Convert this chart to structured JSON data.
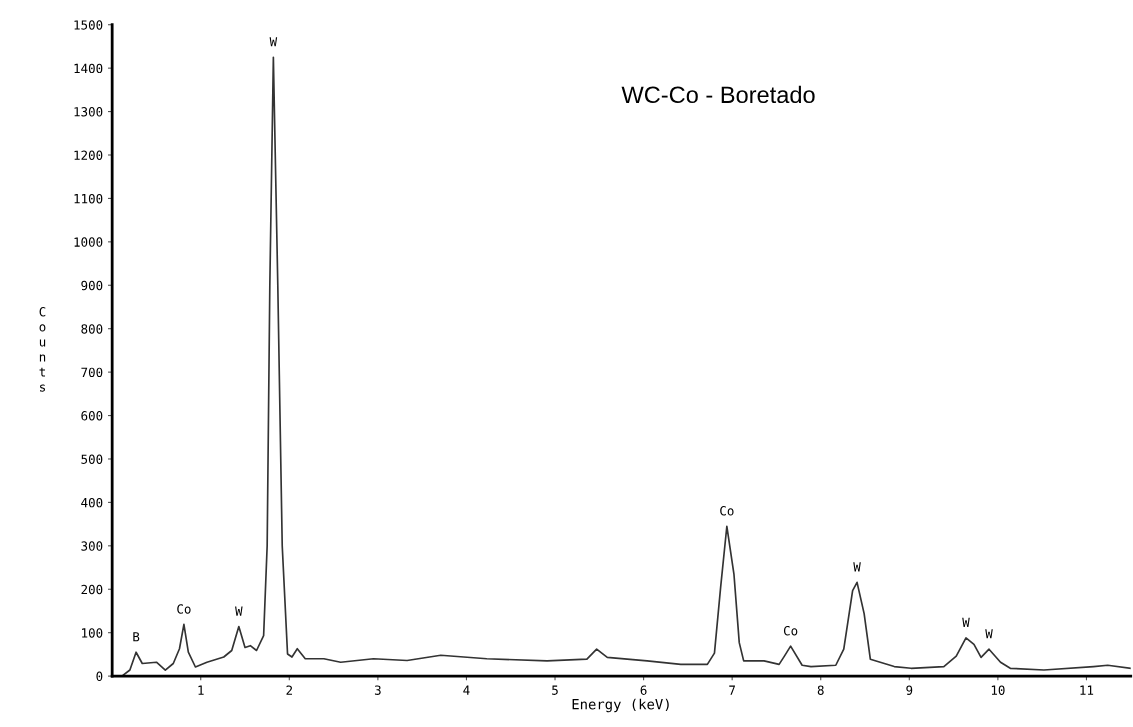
{
  "chart_data": {
    "type": "line",
    "title": "WC-Co - Boretado",
    "xlabel": "Energy (keV)",
    "ylabel": "Counts",
    "xlim": [
      0,
      11.5
    ],
    "xticks": [
      1,
      2,
      3,
      4,
      5,
      6,
      7,
      8,
      9,
      10,
      11
    ],
    "ylim": [
      0,
      1500
    ],
    "yticks": [
      0,
      100,
      200,
      300,
      400,
      500,
      600,
      700,
      800,
      900,
      1000,
      1100,
      1200,
      1300,
      1400,
      1500
    ],
    "grid": false,
    "marker": "none",
    "line_style": "solid",
    "series": [
      {
        "color": "#333333",
        "x": [
          0.11,
          0.2,
          0.27,
          0.34,
          0.5,
          0.6,
          0.69,
          0.76,
          0.81,
          0.86,
          0.94,
          1.07,
          1.26,
          1.35,
          1.43,
          1.5,
          1.56,
          1.63,
          1.71,
          1.75,
          1.78,
          1.82,
          1.87,
          1.92,
          1.98,
          2.03,
          2.09,
          2.18,
          2.39,
          2.58,
          2.95,
          3.33,
          3.71,
          4.23,
          4.91,
          5.36,
          5.47,
          5.59,
          6.04,
          6.42,
          6.72,
          6.8,
          6.87,
          6.94,
          7.02,
          7.08,
          7.13,
          7.36,
          7.53,
          7.59,
          7.66,
          7.79,
          7.89,
          8.17,
          8.26,
          8.36,
          8.41,
          8.49,
          8.56,
          8.83,
          9.02,
          9.39,
          9.53,
          9.64,
          9.73,
          9.81,
          9.9,
          10.03,
          10.14,
          10.52,
          11.08,
          11.24,
          11.5
        ],
        "values": [
          0,
          14,
          55,
          29,
          32,
          14,
          29,
          63,
          119,
          55,
          21,
          32,
          44,
          59,
          114,
          66,
          70,
          59,
          93,
          300,
          900,
          1425,
          900,
          300,
          51,
          44,
          63,
          40,
          40,
          32,
          40,
          36,
          48,
          40,
          35,
          39,
          62,
          43,
          35,
          27,
          27,
          53,
          205,
          345,
          235,
          77,
          35,
          35,
          27,
          46,
          69,
          25,
          22,
          25,
          62,
          197,
          216,
          144,
          39,
          22,
          18,
          22,
          46,
          88,
          73,
          43,
          62,
          32,
          18,
          14,
          22,
          25,
          18
        ]
      }
    ],
    "annotations": [
      {
        "text": "B",
        "x": 0.27,
        "y": 55
      },
      {
        "text": "Co",
        "x": 0.81,
        "y": 119
      },
      {
        "text": "W",
        "x": 1.43,
        "y": 114
      },
      {
        "text": "W",
        "x": 1.82,
        "y": 1425
      },
      {
        "text": "Co",
        "x": 6.94,
        "y": 345
      },
      {
        "text": "Co",
        "x": 7.66,
        "y": 69
      },
      {
        "text": "W",
        "x": 8.41,
        "y": 216
      },
      {
        "text": "W",
        "x": 9.64,
        "y": 88
      },
      {
        "text": "W",
        "x": 9.9,
        "y": 62
      }
    ]
  }
}
